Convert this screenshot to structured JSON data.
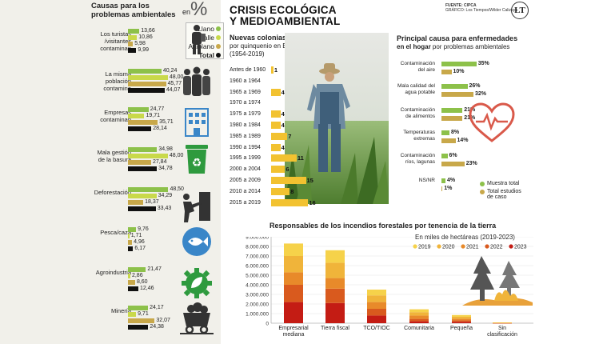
{
  "left_panel": {
    "title": "Causas para los problemas ambientales",
    "en_label": "en",
    "pct_symbol": "%",
    "legend": [
      {
        "label": "Llano",
        "color": "#8dc14a"
      },
      {
        "label": "Valle",
        "color": "#c9d94a"
      },
      {
        "label": "Altiplano",
        "color": "#c8a84a"
      },
      {
        "label": "Total",
        "color": "#111111"
      }
    ],
    "icons": [
      "tourist-icon",
      "people-icon",
      "building-icon",
      "trash-bin-icon",
      "deforestation-icon",
      "fish-icon",
      "gear-leaf-icon",
      "coal-cart-icon"
    ]
  },
  "header": {
    "title_line1": "CRISIS ECOLÓGICA",
    "title_line2": "Y MEDIOAMBIENTAL",
    "credit_line1": "FUENTE: CIPCA",
    "credit_line2": "GRÁFICO: Los Tiempos/Wilder Calizaya",
    "logo": "LT"
  },
  "colonies": {
    "title": "Nuevas colonias menonitas",
    "subtitle_line1": "por quinquenio en Bolivia",
    "subtitle_line2": "(1954-2019)"
  },
  "diseases": {
    "title_line1": "Principal causa para enfermedades",
    "title_line2_bold": "en el hogar",
    "title_line2_rest": " por problemas ambientales",
    "legend_muestra": "Muestra total",
    "legend_estudios_1": "Total estudios",
    "legend_estudios_2": "de caso",
    "icon": "heart-pulse-icon"
  },
  "fires": {
    "title": "Responsables de los incendios forestales por tenencia de la tierra",
    "subtitle": "En miles de hectáreas (2019-2023)"
  },
  "chart_data": [
    {
      "type": "bar",
      "title": "Causas para los problemas ambientales",
      "ylabel": "%",
      "series_names": [
        "Llano",
        "Valle",
        "Altiplano",
        "Total"
      ],
      "series_colors": [
        "#8dc14a",
        "#c9d94a",
        "#c8a84a",
        "#111111"
      ],
      "categories": [
        {
          "label": [
            "Los turistas",
            "/visitantes",
            "contaminan"
          ],
          "values": [
            13.66,
            10.86,
            5.98,
            9.99
          ],
          "labels": [
            "13,66",
            "10,86",
            "5,98",
            "9,99"
          ]
        },
        {
          "label": [
            "La misma",
            "población",
            "contamina"
          ],
          "values": [
            40.24,
            48.0,
            45.77,
            44.07
          ],
          "labels": [
            "40,24",
            "48,00",
            "45,77",
            "44,07"
          ]
        },
        {
          "label": [
            "Empresas",
            "contaminan"
          ],
          "values": [
            24.77,
            19.71,
            35.71,
            28.14
          ],
          "labels": [
            "24,77",
            "19,71",
            "35,71",
            "28,14"
          ]
        },
        {
          "label": [
            "Mala gestión",
            "de la basura"
          ],
          "values": [
            34.98,
            48.0,
            27.84,
            34.78
          ],
          "labels": [
            "34,98",
            "48,00",
            "27,84",
            "34,78"
          ]
        },
        {
          "label": [
            "Deforestación"
          ],
          "values": [
            48.5,
            34.29,
            18.37,
            33.43
          ],
          "labels": [
            "48,50",
            "34,29",
            "18,37",
            "33,43"
          ]
        },
        {
          "label": [
            "Pesca/caza"
          ],
          "values": [
            9.76,
            1.71,
            4.96,
            6.17
          ],
          "labels": [
            "9,76",
            "1,71",
            "4,96",
            "6,17"
          ]
        },
        {
          "label": [
            "Agroindustria"
          ],
          "values": [
            21.47,
            2.86,
            8.6,
            12.46
          ],
          "labels": [
            "21,47",
            "2,86",
            "8,60",
            "12,46"
          ]
        },
        {
          "label": [
            "Minería"
          ],
          "values": [
            24.17,
            9.71,
            32.07,
            24.38
          ],
          "labels": [
            "24,17",
            "9,71",
            "32,07",
            "24,38"
          ]
        }
      ]
    },
    {
      "type": "bar",
      "title": "Nuevas colonias menonitas",
      "categories": [
        "Antes de 1960",
        "1960 a 1964",
        "1965 a 1969",
        "1970 a 1974",
        "1975 a 1979",
        "1980 a 1984",
        "1985 a 1989",
        "1990 a 1994",
        "1995 a 1999",
        "2000 a 2004",
        "2005 a 2009",
        "2010 a 2014",
        "2015 a 2019"
      ],
      "values": [
        1,
        0,
        4,
        0,
        4,
        4,
        7,
        4,
        11,
        6,
        15,
        8,
        16
      ],
      "labels": [
        "1",
        "",
        "4",
        "",
        "4",
        "4",
        "7",
        "4",
        "11",
        "6",
        "15",
        "8",
        "16"
      ],
      "color": "#f2c230"
    },
    {
      "type": "bar",
      "title": "Principal causa para enfermedades en el hogar por problemas ambientales",
      "series_names": [
        "Muestra total",
        "Total estudios de caso"
      ],
      "series_colors": [
        "#8dc14a",
        "#c8a84a"
      ],
      "categories": [
        {
          "label": [
            "Contaminación",
            "del aire"
          ],
          "values": [
            35,
            10
          ],
          "labels": [
            "35%",
            "10%"
          ]
        },
        {
          "label": [
            "Mala calidad del",
            "agua potable"
          ],
          "values": [
            26,
            32
          ],
          "labels": [
            "26%",
            "32%"
          ]
        },
        {
          "label": [
            "Contaminación",
            "de alimentos"
          ],
          "values": [
            21,
            21
          ],
          "labels": [
            "21%",
            "21%"
          ]
        },
        {
          "label": [
            "Temperaturas",
            "extremas"
          ],
          "values": [
            8,
            14
          ],
          "labels": [
            "8%",
            "14%"
          ]
        },
        {
          "label": [
            "Contaminación",
            "ríos, lagunas"
          ],
          "values": [
            6,
            23
          ],
          "labels": [
            "6%",
            "23%"
          ]
        },
        {
          "label": [
            "NS/NR"
          ],
          "values": [
            4,
            1
          ],
          "labels": [
            "4%",
            "1%"
          ]
        }
      ]
    },
    {
      "type": "bar",
      "stacked": true,
      "title": "Responsables de los incendios forestales por tenencia de la tierra",
      "ylim": [
        0,
        9000000
      ],
      "yticks": [
        0,
        1000000,
        2000000,
        3000000,
        4000000,
        5000000,
        6000000,
        7000000,
        8000000,
        9000000
      ],
      "ytick_labels": [
        "0",
        "1.000.000",
        "2.000.000",
        "3.000.000",
        "4.000.000",
        "5.000.000",
        "6.000.000",
        "7.000.000",
        "8.000.000",
        "9.000.000"
      ],
      "categories": [
        [
          "Empresarial",
          "mediana"
        ],
        [
          "Tierra fiscal"
        ],
        [
          "TCO/TIOC"
        ],
        [
          "Comunitaria"
        ],
        [
          "Pequeña"
        ],
        [
          "Sin",
          "clasificación"
        ]
      ],
      "series": [
        {
          "name": "2019",
          "color": "#f6d24a",
          "values": [
            1300000,
            1300000,
            600000,
            300000,
            180000,
            20000
          ]
        },
        {
          "name": "2020",
          "color": "#f0b43a",
          "values": [
            1700000,
            1600000,
            700000,
            350000,
            200000,
            20000
          ]
        },
        {
          "name": "2021",
          "color": "#e88a2a",
          "values": [
            1300000,
            1100000,
            700000,
            350000,
            170000,
            20000
          ]
        },
        {
          "name": "2022",
          "color": "#d95a1e",
          "values": [
            1800000,
            1500000,
            700000,
            250000,
            150000,
            10000
          ]
        },
        {
          "name": "2023",
          "color": "#c41c14",
          "values": [
            2200000,
            2100000,
            800000,
            200000,
            150000,
            10000
          ]
        }
      ]
    }
  ]
}
